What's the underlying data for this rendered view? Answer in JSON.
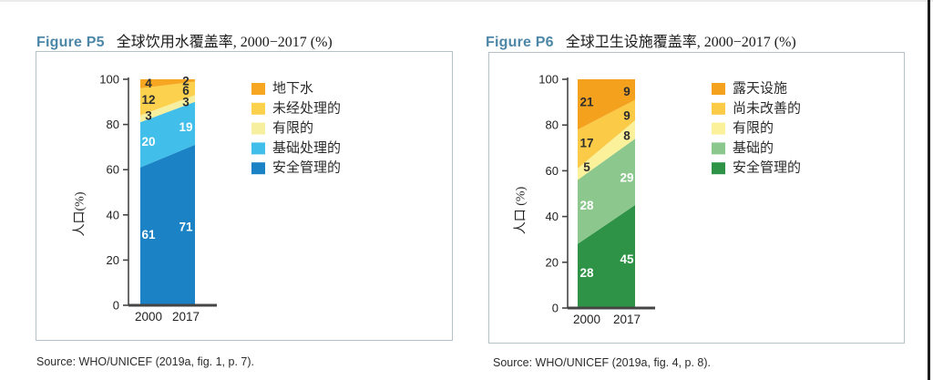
{
  "figures": [
    {
      "label": "Figure P5",
      "title": "全球饮用水覆盖率, 2000−2017 (%)",
      "source": "Source: WHO/UNICEF (2019a, fig. 1, p. 7)."
    },
    {
      "label": "Figure P6",
      "title": "全球卫生设施覆盖率, 2000−2017 (%)",
      "source": "Source: WHO/UNICEF (2019a, fig. 4, p. 8)."
    }
  ],
  "chart_data": [
    {
      "type": "area",
      "stacked": true,
      "title": "全球饮用水覆盖率, 2000−2017 (%)",
      "categories": [
        "2000",
        "2017"
      ],
      "series": [
        {
          "name": "安全管理的",
          "values": [
            61,
            71
          ],
          "color": "#1b82c6",
          "label_color": "#ffffff"
        },
        {
          "name": "基础处理的",
          "values": [
            20,
            19
          ],
          "color": "#41bee9",
          "label_color": "#ffffff"
        },
        {
          "name": "有限的",
          "values": [
            3,
            3
          ],
          "color": "#f6efa0",
          "label_color": "#2e2e2e"
        },
        {
          "name": "未经处理的",
          "values": [
            12,
            6
          ],
          "color": "#fbd14e",
          "label_color": "#2e2e2e"
        },
        {
          "name": "地下水",
          "values": [
            4,
            2
          ],
          "color": "#f6a621",
          "label_color": "#2e2e2e"
        }
      ],
      "xlabel": "",
      "ylabel": "人口(%)",
      "ylim": [
        0,
        100
      ],
      "yticks": [
        0,
        20,
        40,
        60,
        80,
        100
      ],
      "grid": false,
      "legend_position": "right",
      "legend_top_to_bottom": [
        "地下水",
        "未经处理的",
        "有限的",
        "基础处理的",
        "安全管理的"
      ],
      "axis_color": "#454545",
      "tick_label_color": "#222222"
    },
    {
      "type": "area",
      "stacked": true,
      "title": "全球卫生设施覆盖率, 2000−2017 (%)",
      "categories": [
        "2000",
        "2017"
      ],
      "series": [
        {
          "name": "安全管理的",
          "values": [
            28,
            45
          ],
          "color": "#2f9347",
          "label_color": "#ffffff"
        },
        {
          "name": "基础的",
          "values": [
            28,
            29
          ],
          "color": "#8cc88e",
          "label_color": "#ffffff"
        },
        {
          "name": "有限的",
          "values": [
            5,
            8
          ],
          "color": "#fbf19a",
          "label_color": "#2e2e2e"
        },
        {
          "name": "尚未改善的",
          "values": [
            17,
            9
          ],
          "color": "#fbca47",
          "label_color": "#2e2e2e"
        },
        {
          "name": "露天设施",
          "values": [
            21,
            9
          ],
          "color": "#f4a11e",
          "label_color": "#2e2e2e"
        }
      ],
      "xlabel": "",
      "ylabel": "人口 (%)",
      "ylim": [
        0,
        100
      ],
      "yticks": [
        0,
        20,
        40,
        60,
        80,
        100
      ],
      "grid": false,
      "legend_position": "right",
      "legend_top_to_bottom": [
        "露天设施",
        "尚未改善的",
        "有限的",
        "基础的",
        "安全管理的"
      ],
      "axis_color": "#454545",
      "tick_label_color": "#222222"
    }
  ]
}
